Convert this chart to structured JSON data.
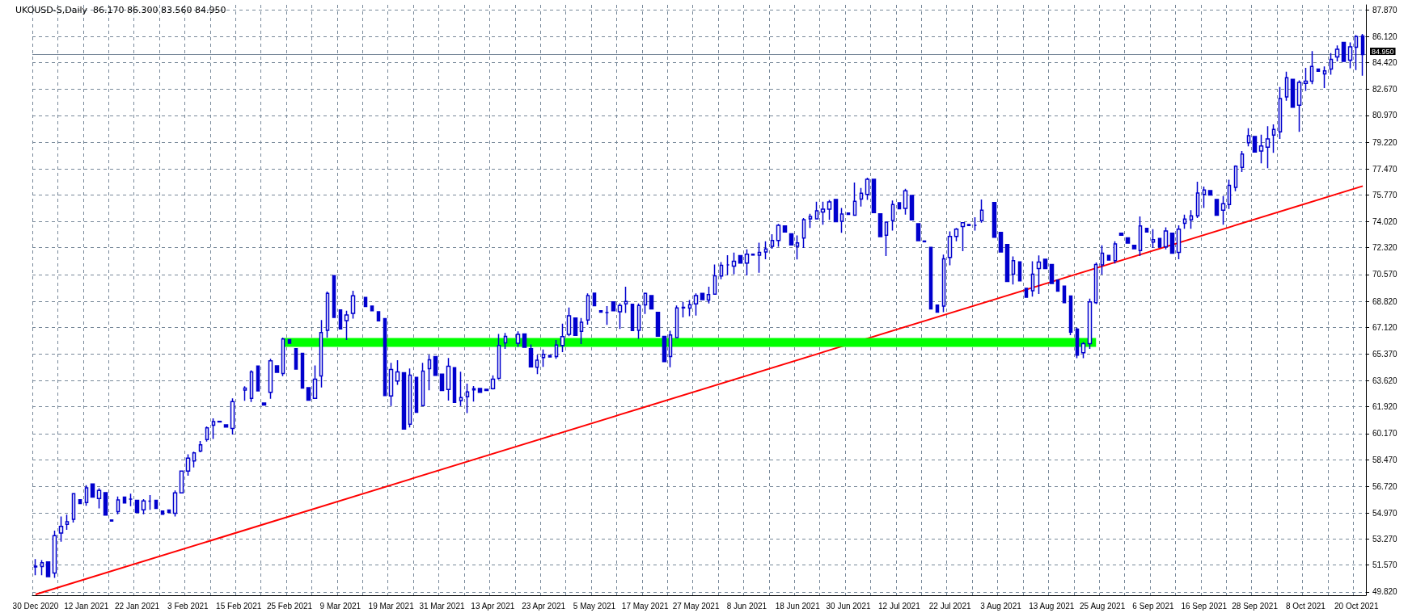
{
  "chart_data": {
    "type": "candlestick",
    "title": "UKOUSD-S,Daily  86.170 86.300 83.560 84.950",
    "categories": [
      "30 Dec 2020",
      null,
      null,
      null,
      null,
      null,
      null,
      null,
      "12 Jan 2021",
      null,
      null,
      null,
      null,
      null,
      null,
      null,
      "22 Jan 2021",
      null,
      null,
      null,
      null,
      null,
      null,
      null,
      "3 Feb 2021",
      null,
      null,
      null,
      null,
      null,
      null,
      null,
      "15 Feb 2021",
      null,
      null,
      null,
      null,
      null,
      null,
      null,
      "25 Feb 2021",
      null,
      null,
      null,
      null,
      null,
      null,
      null,
      "9 Mar 2021",
      null,
      null,
      null,
      null,
      null,
      null,
      null,
      "19 Mar 2021",
      null,
      null,
      null,
      null,
      null,
      null,
      null,
      "31 Mar 2021",
      null,
      null,
      null,
      null,
      null,
      null,
      null,
      "13 Apr 2021",
      null,
      null,
      null,
      null,
      null,
      null,
      null,
      "23 Apr 2021",
      null,
      null,
      null,
      null,
      null,
      null,
      null,
      "5 May 2021",
      null,
      null,
      null,
      null,
      null,
      null,
      null,
      "17 May 2021",
      null,
      null,
      null,
      null,
      null,
      null,
      null,
      "27 May 2021",
      null,
      null,
      null,
      null,
      null,
      null,
      null,
      "8 Jun 2021",
      null,
      null,
      null,
      null,
      null,
      null,
      null,
      "18 Jun 2021",
      null,
      null,
      null,
      null,
      null,
      null,
      null,
      "30 Jun 2021",
      null,
      null,
      null,
      null,
      null,
      null,
      null,
      "12 Jul 2021",
      null,
      null,
      null,
      null,
      null,
      null,
      null,
      "22 Jul 2021",
      null,
      null,
      null,
      null,
      null,
      null,
      null,
      "3 Aug 2021",
      null,
      null,
      null,
      null,
      null,
      null,
      null,
      "13 Aug 2021",
      null,
      null,
      null,
      null,
      null,
      null,
      null,
      "25 Aug 2021",
      null,
      null,
      null,
      null,
      null,
      null,
      null,
      "6 Sep 2021",
      null,
      null,
      null,
      null,
      null,
      null,
      null,
      "16 Sep 2021",
      null,
      null,
      null,
      null,
      null,
      null,
      null,
      "28 Sep 2021",
      null,
      null,
      null,
      null,
      null,
      null,
      null,
      "8 Oct 2021",
      null,
      null,
      null,
      null,
      null,
      null,
      null,
      "20 Oct 2021",
      null
    ],
    "series": [
      {
        "color": "#0000cd",
        "ohlc": [
          [
            51.5,
            51.96,
            50.91,
            51.45
          ],
          [
            51.47,
            51.9,
            50.91,
            51.73
          ],
          [
            51.78,
            51.78,
            50.82,
            50.82
          ],
          [
            51.05,
            53.83,
            50.74,
            53.5
          ],
          [
            53.67,
            54.75,
            53.1,
            54.1
          ],
          [
            54.23,
            54.87,
            53.88,
            54.4
          ],
          [
            54.56,
            56.24,
            54.35,
            56.24
          ],
          [
            55.84,
            55.84,
            55.59,
            55.59
          ],
          [
            55.66,
            56.8,
            55.45,
            56.62
          ],
          [
            56.88,
            56.88,
            56.01,
            56.01
          ],
          [
            55.92,
            56.59,
            55.28,
            56.45
          ],
          [
            56.31,
            56.31,
            54.84,
            54.84
          ],
          [
            54.52,
            54.52,
            54.45,
            54.45
          ],
          [
            55.07,
            56.06,
            54.9,
            55.83
          ],
          [
            56.01,
            56.01,
            55.63,
            55.63
          ],
          [
            55.89,
            56.24,
            55.42,
            55.89
          ],
          [
            55.8,
            55.8,
            55.01,
            55.01
          ],
          [
            55.19,
            55.89,
            54.9,
            55.77
          ],
          [
            55.75,
            56.15,
            55.19,
            55.75
          ],
          [
            55.8,
            55.8,
            55.28,
            55.28
          ],
          [
            55.1,
            55.1,
            54.9,
            54.9
          ],
          [
            55.17,
            55.17,
            55.01,
            55.01
          ],
          [
            54.96,
            56.45,
            54.75,
            56.29
          ],
          [
            56.29,
            57.72,
            56.29,
            57.72
          ],
          [
            57.72,
            58.82,
            57.42,
            58.56
          ],
          [
            58.38,
            58.98,
            57.95,
            58.91
          ],
          [
            59.03,
            59.69,
            58.94,
            59.43
          ],
          [
            59.78,
            60.64,
            59.64,
            60.55
          ],
          [
            60.72,
            61.16,
            59.82,
            60.95
          ],
          [
            60.97,
            60.97,
            60.93,
            60.93
          ],
          [
            60.74,
            60.74,
            60.6,
            60.6
          ],
          [
            60.51,
            62.47,
            60.11,
            62.26
          ],
          null,
          [
            63.01,
            63.26,
            62.31,
            63.15
          ],
          [
            62.47,
            64.3,
            62.23,
            64.2
          ],
          [
            64.58,
            64.58,
            62.96,
            62.96
          ],
          [
            62.17,
            62.17,
            62.03,
            62.03
          ],
          [
            62.87,
            65.06,
            62.44,
            64.93
          ],
          [
            64.59,
            64.59,
            64.18,
            64.18
          ],
          [
            64.1,
            66.45,
            63.92,
            66.35
          ],
          [
            66.31,
            66.31,
            66.07,
            66.07
          ],
          [
            65.72,
            65.72,
            64.39,
            64.39
          ],
          [
            65.42,
            65.42,
            63.14,
            63.14
          ],
          [
            63.17,
            63.17,
            62.35,
            62.35
          ],
          [
            62.47,
            64.62,
            62.47,
            63.73
          ],
          [
            63.94,
            67.59,
            63.19,
            66.77
          ],
          [
            66.92,
            69.46,
            66.45,
            69.33
          ],
          [
            70.5,
            70.5,
            67.76,
            67.76
          ],
          [
            68.25,
            68.25,
            67.01,
            67.01
          ],
          [
            67.55,
            68.2,
            66.28,
            67.92
          ],
          [
            68.03,
            69.51,
            67.68,
            69.18
          ],
          null,
          [
            69.07,
            69.07,
            68.48,
            68.48
          ],
          [
            68.51,
            68.51,
            68.2,
            68.2
          ],
          [
            68.13,
            68.13,
            67.54,
            67.54
          ],
          [
            67.68,
            67.68,
            62.66,
            62.66
          ],
          [
            62.63,
            64.8,
            61.97,
            64.36
          ],
          [
            63.61,
            64.97,
            63.35,
            64.2
          ],
          [
            64.15,
            64.15,
            60.46,
            60.46
          ],
          [
            60.78,
            64.43,
            60.57,
            63.99
          ],
          [
            63.85,
            63.85,
            61.56,
            61.56
          ],
          [
            62.0,
            64.8,
            62.0,
            64.25
          ],
          [
            64.41,
            65.32,
            63.0,
            64.99
          ],
          [
            65.21,
            65.21,
            63.97,
            63.97
          ],
          [
            64.06,
            64.06,
            62.98,
            62.98
          ],
          [
            63.05,
            65.11,
            62.32,
            64.57
          ],
          [
            64.48,
            64.48,
            62.21,
            62.21
          ],
          [
            62.32,
            64.22,
            61.97,
            62.52
          ],
          [
            62.58,
            63.43,
            61.51,
            62.89
          ],
          [
            63.03,
            63.28,
            62.26,
            63.1
          ],
          [
            63.12,
            63.12,
            62.87,
            62.87
          ],
          [
            63.07,
            63.07,
            62.98,
            62.98
          ],
          [
            63.1,
            63.97,
            63.05,
            63.73
          ],
          [
            63.78,
            66.68,
            63.7,
            65.93
          ],
          [
            66.1,
            66.75,
            65.7,
            66.52
          ],
          null,
          [
            66.07,
            66.85,
            65.84,
            66.66
          ],
          [
            66.68,
            66.68,
            65.81,
            65.81
          ],
          [
            65.72,
            66.0,
            64.53,
            64.53
          ],
          [
            64.5,
            65.32,
            64.06,
            64.97
          ],
          [
            65.14,
            65.67,
            64.53,
            65.35
          ],
          [
            65.28,
            65.28,
            65.18,
            65.18
          ],
          [
            65.2,
            66.28,
            65.06,
            65.96
          ],
          [
            65.93,
            67.36,
            65.49,
            66.51
          ],
          [
            66.66,
            68.41,
            66.54,
            67.87
          ],
          [
            67.73,
            67.73,
            66.59,
            66.59
          ],
          [
            66.85,
            67.73,
            66.02,
            67.45
          ],
          [
            67.59,
            69.33,
            67.29,
            69.19
          ],
          [
            69.35,
            69.35,
            68.53,
            68.53
          ],
          [
            68.2,
            68.2,
            68.11,
            68.11
          ],
          [
            68.08,
            68.51,
            67.27,
            68.08
          ],
          [
            68.78,
            68.78,
            68.2,
            68.2
          ],
          [
            68.13,
            68.69,
            67.01,
            68.55
          ],
          [
            68.65,
            69.77,
            68.06,
            68.81
          ],
          [
            68.62,
            68.62,
            66.91,
            66.91
          ],
          [
            66.92,
            68.67,
            66.37,
            68.55
          ],
          [
            68.58,
            69.39,
            67.99,
            69.33
          ],
          [
            69.19,
            69.19,
            68.32,
            68.32
          ],
          [
            68.09,
            68.09,
            66.54,
            66.54
          ],
          [
            66.52,
            66.52,
            64.88,
            64.88
          ],
          [
            65.2,
            66.89,
            64.5,
            66.61
          ],
          [
            66.45,
            68.55,
            66.45,
            68.39
          ],
          [
            68.38,
            68.78,
            67.76,
            68.42
          ],
          [
            68.37,
            68.9,
            67.85,
            68.6
          ],
          [
            68.65,
            69.33,
            67.88,
            69.19
          ],
          [
            69.33,
            69.33,
            68.93,
            68.93
          ],
          [
            68.9,
            69.77,
            68.67,
            69.25
          ],
          [
            69.28,
            71.22,
            69.28,
            70.49
          ],
          [
            70.47,
            71.38,
            70.26,
            71.17
          ],
          [
            71.2,
            71.83,
            70.52,
            71.2
          ],
          [
            71.12,
            72.0,
            70.59,
            71.43
          ],
          [
            71.81,
            71.81,
            71.31,
            71.31
          ],
          [
            71.31,
            72.22,
            70.51,
            71.9
          ],
          [
            71.9,
            71.9,
            71.84,
            71.84
          ],
          [
            71.83,
            72.65,
            70.68,
            72.01
          ],
          [
            72.04,
            72.74,
            71.57,
            72.24
          ],
          [
            72.41,
            73.21,
            72.25,
            72.79
          ],
          [
            72.79,
            73.88,
            72.39,
            73.79
          ],
          [
            73.75,
            73.75,
            73.35,
            73.35
          ],
          [
            73.23,
            73.23,
            72.51,
            72.51
          ],
          [
            72.41,
            73.13,
            71.55,
            72.64
          ],
          [
            72.95,
            74.26,
            72.3,
            74.16
          ],
          [
            74.21,
            74.54,
            73.61,
            74.37
          ],
          [
            74.21,
            75.33,
            74.21,
            74.73
          ],
          [
            74.66,
            75.33,
            73.82,
            74.84
          ],
          [
            74.84,
            75.45,
            74.14,
            75.31
          ],
          [
            75.48,
            75.48,
            74.02,
            74.02
          ],
          [
            74.05,
            74.92,
            73.3,
            74.52
          ],
          [
            74.59,
            74.59,
            74.5,
            74.5
          ],
          [
            74.45,
            76.58,
            74.4,
            75.36
          ],
          [
            75.5,
            76.23,
            75.01,
            75.88
          ],
          [
            75.81,
            76.9,
            75.45,
            76.79
          ],
          [
            76.79,
            76.79,
            74.61,
            74.61
          ],
          [
            74.54,
            74.54,
            73.04,
            73.04
          ],
          [
            73.14,
            74.0,
            71.78,
            74.0
          ],
          [
            74.1,
            75.41,
            73.44,
            75.15
          ],
          [
            75.26,
            75.26,
            74.87,
            74.87
          ],
          [
            74.89,
            76.18,
            74.49,
            76.04
          ],
          [
            75.74,
            75.74,
            74.14,
            74.14
          ],
          [
            73.89,
            73.89,
            72.78,
            72.78
          ],
          [
            72.76,
            72.76,
            72.71,
            72.71
          ],
          [
            72.34,
            72.34,
            68.32,
            68.32
          ],
          [
            68.57,
            68.57,
            68.11,
            68.11
          ],
          [
            68.5,
            71.87,
            68.11,
            71.59
          ],
          [
            71.69,
            73.39,
            71.17,
            73.06
          ],
          [
            73.06,
            73.61,
            72.74,
            73.53
          ],
          [
            73.7,
            74.0,
            72.1,
            73.95
          ],
          [
            73.84,
            73.84,
            73.77,
            73.77
          ],
          [
            73.79,
            74.31,
            73.44,
            73.79
          ],
          [
            74.09,
            75.48,
            73.96,
            74.78
          ],
          null,
          [
            75.27,
            75.27,
            73.0,
            73.0
          ],
          [
            73.32,
            73.32,
            72.04,
            72.04
          ],
          [
            72.53,
            72.53,
            70.12,
            70.12
          ],
          [
            70.59,
            71.75,
            69.91,
            71.47
          ],
          [
            71.4,
            71.4,
            70.16,
            70.16
          ],
          [
            69.67,
            69.67,
            69.08,
            69.08
          ],
          [
            69.51,
            71.43,
            69.13,
            70.59
          ],
          [
            70.96,
            71.82,
            69.29,
            71.38
          ],
          [
            71.57,
            71.57,
            70.96,
            70.96
          ],
          [
            71.22,
            71.22,
            69.98,
            69.98
          ],
          [
            70.21,
            70.21,
            69.48,
            69.48
          ],
          [
            69.81,
            69.81,
            68.73,
            68.73
          ],
          [
            69.16,
            69.2,
            66.6,
            66.8
          ],
          [
            67.0,
            67.1,
            65.1,
            65.3
          ],
          [
            65.45,
            66.15,
            65.1,
            66.05
          ],
          [
            66.05,
            68.99,
            65.7,
            68.78
          ],
          [
            68.73,
            71.35,
            68.64,
            71.22
          ],
          [
            71.2,
            72.48,
            70.56,
            71.96
          ],
          [
            71.82,
            71.82,
            71.52,
            71.52
          ],
          [
            71.48,
            72.74,
            71.29,
            72.57
          ],
          [
            73.27,
            73.27,
            73.14,
            73.14
          ],
          [
            72.97,
            72.97,
            72.62,
            72.62
          ],
          [
            72.48,
            72.48,
            72.25,
            72.25
          ],
          [
            72.13,
            74.37,
            71.78,
            73.74
          ],
          [
            73.58,
            73.58,
            73.35,
            73.35
          ],
          [
            72.69,
            73.53,
            72.31,
            72.85
          ],
          [
            72.92,
            72.92,
            72.36,
            72.36
          ],
          [
            72.39,
            73.65,
            72.22,
            73.41
          ],
          [
            73.27,
            73.27,
            71.96,
            71.96
          ],
          [
            72.01,
            73.79,
            71.57,
            73.53
          ],
          [
            73.91,
            74.49,
            73.56,
            74.19
          ],
          [
            74.14,
            74.78,
            73.56,
            74.4
          ],
          [
            74.4,
            76.64,
            74.26,
            75.89
          ],
          [
            75.8,
            76.32,
            74.92,
            76.1
          ],
          [
            76.06,
            76.06,
            75.76,
            75.76
          ],
          [
            75.48,
            75.48,
            74.45,
            74.45
          ],
          [
            74.78,
            75.7,
            73.83,
            75.2
          ],
          [
            75.15,
            76.77,
            74.85,
            76.4
          ],
          [
            76.27,
            77.7,
            76.02,
            77.65
          ],
          [
            77.57,
            78.64,
            77.27,
            78.44
          ],
          [
            79.19,
            80.14,
            78.94,
            79.64
          ],
          [
            79.59,
            79.59,
            78.57,
            78.57
          ],
          [
            78.64,
            79.71,
            77.84,
            78.97
          ],
          [
            78.89,
            80.26,
            77.52,
            79.44
          ],
          [
            79.69,
            80.39,
            78.52,
            80.06
          ],
          [
            79.89,
            82.83,
            79.44,
            82.08
          ],
          [
            82.18,
            83.83,
            81.93,
            83.43
          ],
          [
            83.33,
            83.33,
            81.51,
            81.51
          ],
          [
            81.64,
            83.26,
            79.89,
            83.13
          ],
          [
            83.06,
            84.08,
            82.58,
            83.21
          ],
          [
            83.21,
            85.18,
            83.01,
            84.18
          ],
          [
            84.0,
            84.0,
            83.86,
            83.86
          ],
          [
            83.68,
            84.18,
            82.76,
            83.88
          ],
          [
            84.0,
            85.05,
            83.63,
            84.63
          ],
          [
            84.8,
            85.55,
            84.5,
            85.3
          ],
          [
            85.75,
            85.75,
            84.5,
            84.5
          ],
          [
            84.58,
            85.75,
            84.05,
            85.45
          ],
          [
            85.43,
            86.22,
            83.93,
            86.13
          ],
          [
            86.17,
            86.3,
            83.56,
            84.95
          ]
        ]
      },
      {
        "type": "line",
        "color": "#ff0000",
        "values": [
          49.65,
          null,
          null,
          null,
          null,
          null,
          null,
          null,
          null,
          null,
          null,
          null,
          null,
          null,
          null,
          null,
          null,
          null,
          null,
          null,
          null,
          null,
          null,
          null,
          null,
          null,
          null,
          null,
          null,
          null,
          null,
          null,
          null,
          null,
          null,
          null,
          null,
          null,
          null,
          null,
          null,
          null,
          null,
          null,
          null,
          null,
          null,
          null,
          null,
          null,
          null,
          null,
          null,
          null,
          null,
          null,
          null,
          null,
          null,
          null,
          null,
          null,
          null,
          null,
          null,
          null,
          null,
          null,
          null,
          null,
          null,
          null,
          null,
          null,
          null,
          null,
          null,
          null,
          null,
          null,
          null,
          null,
          null,
          null,
          null,
          null,
          null,
          null,
          null,
          null,
          null,
          null,
          null,
          null,
          null,
          null,
          null,
          null,
          null,
          null,
          null,
          null,
          null,
          null,
          null,
          null,
          null,
          null,
          null,
          null,
          null,
          null,
          null,
          null,
          null,
          null,
          null,
          null,
          null,
          null,
          null,
          null,
          null,
          null,
          null,
          null,
          null,
          null,
          null,
          null,
          null,
          null,
          null,
          null,
          null,
          null,
          null,
          null,
          null,
          null,
          null,
          null,
          null,
          null,
          null,
          null,
          null,
          null,
          null,
          null,
          null,
          null,
          null,
          null,
          null,
          null,
          null,
          null,
          null,
          null,
          null,
          null,
          null,
          null,
          null,
          null,
          null,
          null,
          null,
          null,
          null,
          null,
          null,
          null,
          null,
          null,
          null,
          null,
          null,
          null,
          null,
          null,
          null,
          null,
          null,
          null,
          null,
          null,
          null,
          null,
          null,
          null,
          null,
          null,
          null,
          null,
          null,
          null,
          null,
          null,
          null,
          null,
          null,
          null,
          null,
          null,
          null,
          null,
          null,
          76.35
        ]
      },
      {
        "type": "line",
        "color": "#00ff00",
        "values": [
          null,
          null,
          null,
          null,
          null,
          null,
          null,
          null,
          null,
          null,
          null,
          null,
          null,
          null,
          null,
          null,
          null,
          null,
          null,
          null,
          null,
          null,
          null,
          null,
          null,
          null,
          null,
          null,
          null,
          null,
          null,
          null,
          null,
          null,
          null,
          null,
          null,
          null,
          null,
          66.13,
          null,
          null,
          null,
          null,
          null,
          null,
          null,
          null,
          null,
          null,
          null,
          null,
          null,
          null,
          null,
          null,
          null,
          null,
          null,
          null,
          null,
          null,
          null,
          null,
          null,
          null,
          null,
          null,
          null,
          null,
          null,
          null,
          null,
          null,
          null,
          null,
          null,
          null,
          null,
          null,
          null,
          null,
          null,
          null,
          null,
          null,
          null,
          null,
          null,
          null,
          null,
          null,
          null,
          null,
          null,
          null,
          null,
          null,
          null,
          null,
          null,
          null,
          null,
          null,
          null,
          null,
          null,
          null,
          null,
          null,
          null,
          null,
          null,
          null,
          null,
          null,
          null,
          null,
          null,
          null,
          null,
          null,
          null,
          null,
          null,
          null,
          null,
          null,
          null,
          null,
          null,
          null,
          null,
          null,
          null,
          null,
          null,
          null,
          null,
          null,
          null,
          null,
          null,
          null,
          null,
          null,
          null,
          null,
          null,
          null,
          null,
          null,
          null,
          null,
          null,
          null,
          null,
          null,
          null,
          null,
          null,
          null,
          null,
          null,
          null,
          null,
          null,
          66.13,
          null,
          null,
          null,
          null,
          null,
          null,
          null,
          null,
          null,
          null,
          null,
          null,
          null,
          null,
          null,
          null,
          null,
          null,
          null,
          null,
          null,
          null,
          null,
          null,
          null,
          null,
          null,
          null,
          null,
          null,
          null,
          null,
          null,
          null,
          null,
          null,
          null,
          null,
          null,
          null,
          null,
          null
        ]
      }
    ],
    "ylim": [
      49.6,
      88.2
    ],
    "yticks": [
      {
        "value": 49.82,
        "label": "49.820"
      },
      {
        "value": 51.57,
        "label": "51.570"
      },
      {
        "value": 53.27,
        "label": "53.270"
      },
      {
        "value": 54.97,
        "label": "54.970"
      },
      {
        "value": 56.72,
        "label": "56.720"
      },
      {
        "value": 58.47,
        "label": "58.470"
      },
      {
        "value": 60.17,
        "label": "60.170"
      },
      {
        "value": 61.92,
        "label": "61.920"
      },
      {
        "value": 63.62,
        "label": "63.620"
      },
      {
        "value": 65.37,
        "label": "65.370"
      },
      {
        "value": 67.12,
        "label": "67.120"
      },
      {
        "value": 68.82,
        "label": "68.820"
      },
      {
        "value": 70.57,
        "label": "70.570"
      },
      {
        "value": 72.32,
        "label": "72.320"
      },
      {
        "value": 74.02,
        "label": "74.020"
      },
      {
        "value": 75.77,
        "label": "75.770"
      },
      {
        "value": 77.47,
        "label": "77.470"
      },
      {
        "value": 79.22,
        "label": "79.220"
      },
      {
        "value": 80.97,
        "label": "80.970"
      },
      {
        "value": 82.67,
        "label": "82.670"
      },
      {
        "value": 84.42,
        "label": "84.420"
      },
      {
        "value": 86.12,
        "label": "86.120"
      },
      {
        "value": 87.87,
        "label": "87.870"
      }
    ],
    "ref_lines": [
      {
        "axis": "y",
        "value": 84.95,
        "label": "84.950",
        "color": "#778899"
      }
    ],
    "grid": true
  }
}
